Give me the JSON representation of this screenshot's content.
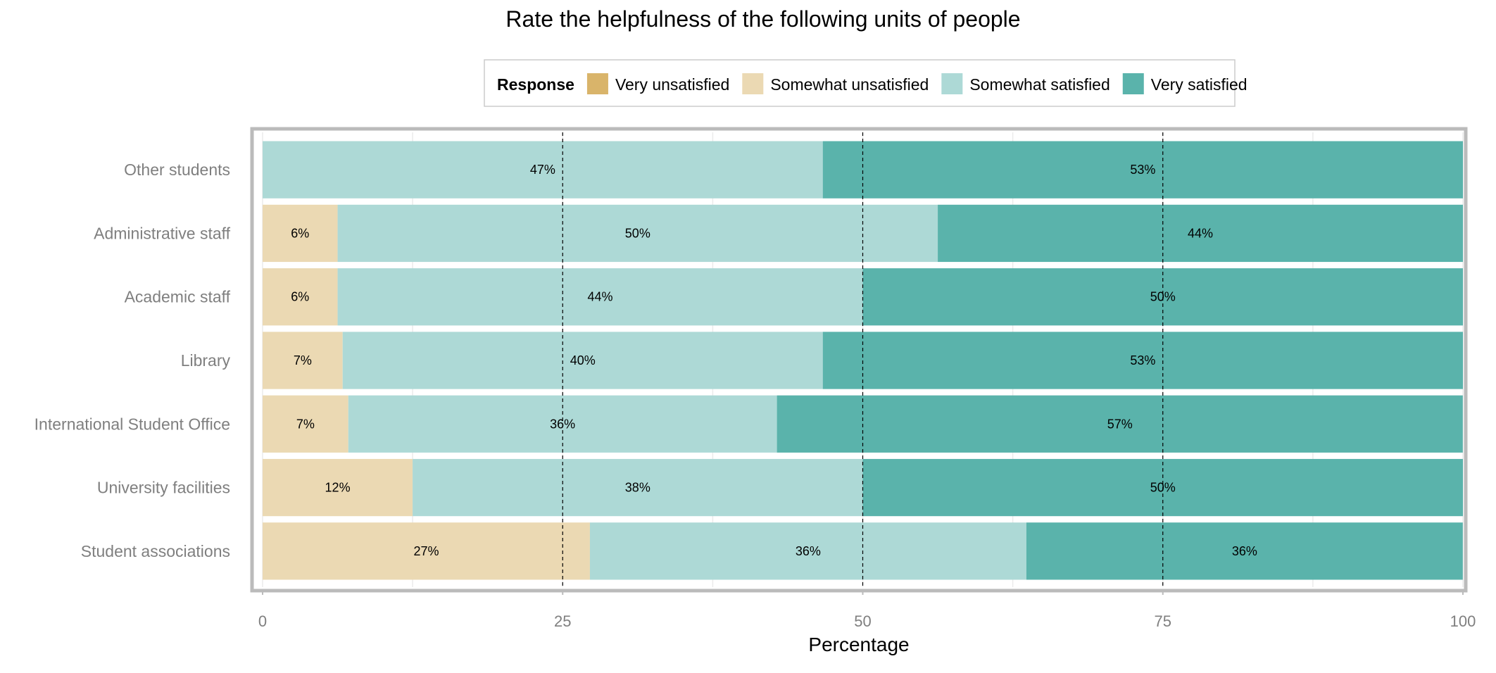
{
  "chart_data": {
    "type": "bar",
    "orientation": "horizontal",
    "stacked": true,
    "title": "Rate the helpfulness of the following units of people",
    "xlabel": "Percentage",
    "ylabel": "",
    "xlim": [
      0,
      100
    ],
    "x_ticks": [
      "0",
      "25",
      "50",
      "75",
      "100"
    ],
    "reference_lines": [
      25,
      50,
      75
    ],
    "grid": true,
    "legend_position": "top",
    "legend_title": "Response",
    "categories": [
      "Other students",
      "Administrative staff",
      "Academic staff",
      "Library",
      "International Student Office",
      "University facilities",
      "Student associations"
    ],
    "series": [
      {
        "name": "Very unsatisfied",
        "color": "#d9b46a",
        "values": [
          0,
          0,
          0,
          0,
          0,
          0,
          0
        ],
        "labels": [
          "",
          "",
          "",
          "",
          "",
          "",
          ""
        ]
      },
      {
        "name": "Somewhat unsatisfied",
        "color": "#ebd9b3",
        "values": [
          0,
          6.25,
          6.25,
          6.67,
          7.14,
          12.5,
          27.27
        ],
        "labels": [
          "",
          "6%",
          "6%",
          "7%",
          "7%",
          "12%",
          "27%"
        ]
      },
      {
        "name": "Somewhat satisfied",
        "color": "#add9d6",
        "values": [
          46.67,
          50,
          43.75,
          40,
          35.71,
          37.5,
          36.36
        ],
        "labels": [
          "47%",
          "50%",
          "44%",
          "40%",
          "36%",
          "38%",
          "36%"
        ]
      },
      {
        "name": "Very satisfied",
        "color": "#5ab3ab",
        "values": [
          53.33,
          43.75,
          50,
          53.33,
          57.14,
          50,
          36.36
        ],
        "labels": [
          "53%",
          "44%",
          "50%",
          "53%",
          "57%",
          "50%",
          "36%"
        ]
      }
    ]
  }
}
